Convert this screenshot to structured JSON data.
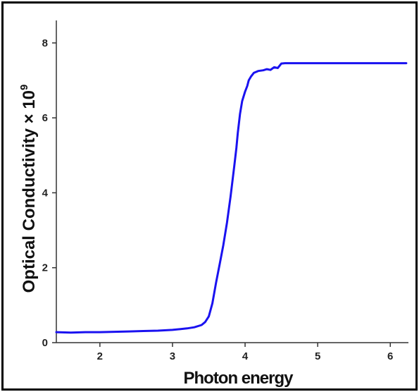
{
  "chart_data": {
    "type": "line",
    "title": "",
    "xlabel": "Photon energy",
    "ylabel": "Optical Conductivity × 10",
    "ylabel_exponent": "9",
    "xlim": [
      1.4,
      6.25
    ],
    "ylim": [
      0,
      8.6
    ],
    "xticks": [
      2,
      3,
      4,
      5,
      6
    ],
    "yticks": [
      0,
      2,
      4,
      6,
      8
    ],
    "xtick_labels": [
      "2",
      "3",
      "4",
      "5",
      "6"
    ],
    "ytick_labels": [
      "0",
      "2",
      "4",
      "6",
      "8"
    ],
    "grid": false,
    "line_color": "#1a12f0",
    "series": [
      {
        "x": [
          1.4,
          1.6,
          1.8,
          2.0,
          2.2,
          2.4,
          2.6,
          2.8,
          3.0,
          3.1,
          3.2,
          3.3,
          3.4,
          3.45,
          3.5,
          3.55,
          3.6,
          3.65,
          3.7,
          3.75,
          3.8,
          3.85,
          3.88,
          3.9,
          3.93,
          3.96,
          4.0,
          4.03,
          4.05,
          4.08,
          4.12,
          4.18,
          4.25,
          4.3,
          4.35,
          4.4,
          4.45,
          4.5,
          4.55,
          4.7,
          5.0,
          5.5,
          6.0,
          6.22
        ],
        "y": [
          0.28,
          0.27,
          0.28,
          0.28,
          0.29,
          0.3,
          0.31,
          0.32,
          0.34,
          0.36,
          0.38,
          0.41,
          0.47,
          0.55,
          0.7,
          1.05,
          1.6,
          2.1,
          2.6,
          3.2,
          3.9,
          4.7,
          5.2,
          5.6,
          6.1,
          6.45,
          6.7,
          6.85,
          7.0,
          7.1,
          7.2,
          7.25,
          7.27,
          7.3,
          7.28,
          7.35,
          7.33,
          7.45,
          7.46,
          7.46,
          7.46,
          7.46,
          7.46,
          7.46
        ]
      }
    ]
  }
}
